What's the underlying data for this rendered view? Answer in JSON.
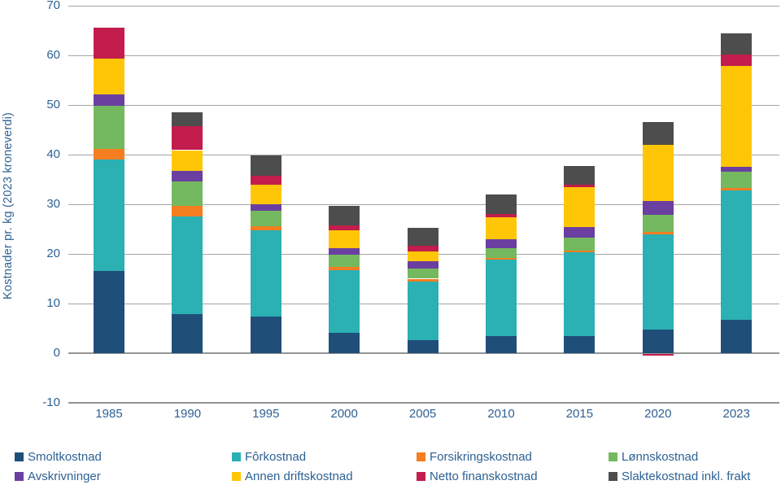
{
  "chart_data": {
    "type": "bar",
    "stacked": true,
    "title": "",
    "xlabel": "",
    "ylabel": "Kostnader pr. kg (2023 kroneverdi)",
    "categories": [
      "1985",
      "1990",
      "1995",
      "2000",
      "2005",
      "2010",
      "2015",
      "2020",
      "2023"
    ],
    "series": [
      {
        "name": "Smoltkostnad",
        "color": "#1F4E79",
        "values": [
          16.6,
          7.8,
          7.3,
          4.1,
          2.7,
          3.4,
          3.4,
          4.8,
          6.7
        ]
      },
      {
        "name": "Fôrkostnad",
        "color": "#2BB0B4",
        "values": [
          22.4,
          19.8,
          17.5,
          12.7,
          11.8,
          15.5,
          17.0,
          19.2,
          26.1
        ]
      },
      {
        "name": "Forsikringskostnad",
        "color": "#F57E20",
        "values": [
          2.2,
          2.1,
          0.8,
          0.6,
          0.5,
          0.3,
          0.2,
          0.4,
          0.4
        ]
      },
      {
        "name": "Lønnskostnad",
        "color": "#74B95F",
        "values": [
          8.7,
          4.9,
          3.1,
          2.5,
          2.0,
          2.0,
          2.6,
          3.5,
          3.3
        ]
      },
      {
        "name": "Avskrivninger",
        "color": "#6B3FA0",
        "values": [
          2.3,
          2.2,
          1.3,
          1.3,
          1.5,
          1.8,
          2.2,
          2.8,
          1.1
        ]
      },
      {
        "name": "Annen driftskostnad",
        "color": "#FFC608",
        "values": [
          7.2,
          4.1,
          3.9,
          3.6,
          2.0,
          4.3,
          8.1,
          11.3,
          20.2
        ]
      },
      {
        "name": "Netto finanskostnad",
        "color": "#C21D4C",
        "values": [
          6.1,
          4.9,
          1.8,
          0.9,
          1.1,
          0.7,
          0.4,
          -0.4,
          2.3
        ]
      },
      {
        "name": "Slaktekostnad inkl. frakt",
        "color": "#4D4D4D",
        "values": [
          0.0,
          2.7,
          4.2,
          4.0,
          3.7,
          3.9,
          3.8,
          4.6,
          4.4
        ]
      }
    ],
    "ylim": [
      -10,
      70
    ],
    "yticks": [
      70,
      60,
      50,
      40,
      30,
      20,
      10,
      0,
      -10
    ],
    "grid": true,
    "legend_position": "bottom",
    "legend_rows": 2,
    "legend_items_per_row": 4
  },
  "style": {
    "text_color": "#2E6193",
    "gridline_color": "#A5A5A5",
    "axis_line_color": "#949494",
    "background": "#ffffff"
  }
}
